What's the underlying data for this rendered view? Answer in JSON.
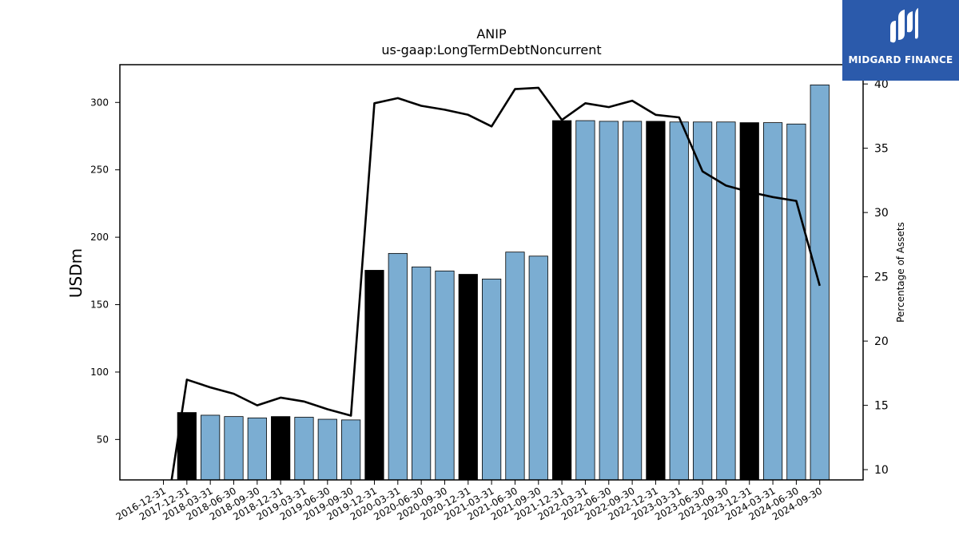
{
  "chart_data": {
    "type": "bar",
    "title": "ANIP",
    "subtitle": "us-gaap:LongTermDebtNoncurrent",
    "ylabel": "USDm",
    "y2label": "Percentage of Assets",
    "ylim": [
      20,
      328
    ],
    "y2lim": [
      9.2,
      41.5
    ],
    "yticks": [
      50,
      100,
      150,
      200,
      250,
      300
    ],
    "y2ticks": [
      10,
      15,
      20,
      25,
      30,
      35,
      40
    ],
    "categories": [
      "2016-12-31",
      "2017-12-31",
      "2018-03-31",
      "2018-06-30",
      "2018-09-30",
      "2018-12-31",
      "2019-03-31",
      "2019-06-30",
      "2019-09-30",
      "2019-12-31",
      "2020-03-31",
      "2020-06-30",
      "2020-09-30",
      "2020-12-31",
      "2021-03-31",
      "2021-06-30",
      "2021-09-30",
      "2021-12-31",
      "2022-03-31",
      "2022-06-30",
      "2022-09-30",
      "2022-12-31",
      "2023-03-31",
      "2023-06-30",
      "2023-09-30",
      "2023-12-31",
      "2024-03-31",
      "2024-06-30",
      "2024-09-30"
    ],
    "series": [
      {
        "kind": "bar",
        "values": [
          null,
          70,
          68,
          67,
          66,
          67,
          66.5,
          65,
          64.5,
          175.5,
          188,
          178,
          175,
          172.5,
          169,
          189,
          186,
          286.5,
          286.5,
          286,
          286,
          286,
          285.5,
          285.5,
          285.5,
          285,
          285,
          284,
          313
        ],
        "colors": {
          "default": "#7badd2",
          "year_end": "#000000"
        }
      },
      {
        "kind": "line",
        "axis": "right",
        "values": [
          5,
          17,
          16.4,
          15.9,
          15,
          15.6,
          15.3,
          14.7,
          14.2,
          38.5,
          38.9,
          38.3,
          38,
          37.6,
          36.7,
          39.6,
          39.7,
          37.2,
          38.5,
          38.2,
          38.7,
          37.6,
          37.4,
          33.2,
          32.1,
          31.6,
          31.2,
          30.9,
          24.3
        ],
        "color": "#000000"
      }
    ]
  },
  "branding": {
    "logo_text": "MIDGARD FINANCE",
    "background": "#2b5aab"
  }
}
